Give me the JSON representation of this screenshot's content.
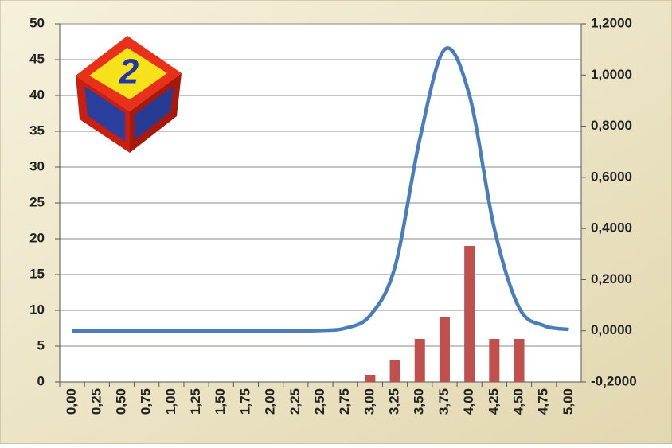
{
  "chart_data": {
    "type": "bar-line",
    "categories": [
      "0,00",
      "0,25",
      "0,50",
      "0,75",
      "1,00",
      "1,25",
      "1,50",
      "1,75",
      "2,00",
      "2,25",
      "2,50",
      "2,75",
      "3,00",
      "3,25",
      "3,50",
      "3,75",
      "4,00",
      "4,25",
      "4,50",
      "4,75",
      "5,00"
    ],
    "series": [
      {
        "type": "bar",
        "color": "#c0504d",
        "values": [
          0,
          0,
          0,
          0,
          0,
          0,
          0,
          0,
          0,
          0,
          0,
          0,
          1,
          3,
          6,
          9,
          19,
          6,
          6,
          0,
          0
        ]
      },
      {
        "type": "line",
        "axis": "y2",
        "color": "#4a7ebb",
        "values": [
          0,
          0,
          0,
          0,
          0,
          0,
          0,
          0,
          0,
          0,
          0.001,
          0.01,
          0.06,
          0.25,
          0.75,
          1.1,
          0.92,
          0.4,
          0.09,
          0.02,
          0.005
        ]
      }
    ],
    "ylim": [
      0,
      50
    ],
    "yticks": [
      0,
      5,
      10,
      15,
      20,
      25,
      30,
      35,
      40,
      45,
      50
    ],
    "y2lim": [
      -0.2,
      1.2
    ],
    "y2ticks": [
      {
        "value": -0.2,
        "label": "-0,2000"
      },
      {
        "value": 0,
        "label": "0,0000"
      },
      {
        "value": 0.2,
        "label": "0,2000"
      },
      {
        "value": 0.4,
        "label": "0,4000"
      },
      {
        "value": 0.6,
        "label": "0,6000"
      },
      {
        "value": 0.8,
        "label": "0,8000"
      },
      {
        "value": 1.0,
        "label": "1,0000"
      },
      {
        "value": 1.2,
        "label": "1,2000"
      }
    ],
    "grid": true
  }
}
